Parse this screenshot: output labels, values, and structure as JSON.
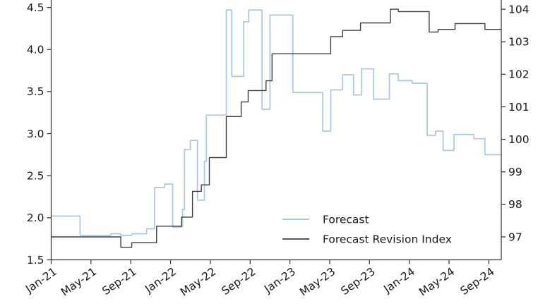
{
  "chart_data": {
    "type": "line",
    "style": "step-post",
    "title": "",
    "xlabel": "",
    "ylabel_left": "",
    "ylabel_right": "",
    "grid": false,
    "series": [
      {
        "name": "Forecast",
        "axis": "left",
        "color": "#a9c7e3",
        "line_width": 1.7,
        "step_points": [
          [
            0.0,
            2.02
          ],
          [
            2.9,
            1.79
          ],
          [
            6.0,
            1.81
          ],
          [
            7.0,
            1.79
          ],
          [
            8.1,
            1.81
          ],
          [
            9.6,
            1.87
          ],
          [
            10.4,
            2.36
          ],
          [
            11.4,
            2.4
          ],
          [
            12.2,
            1.89
          ],
          [
            13.2,
            2.1
          ],
          [
            13.4,
            2.81
          ],
          [
            14.0,
            2.92
          ],
          [
            14.7,
            2.21
          ],
          [
            15.4,
            2.67
          ],
          [
            15.6,
            3.22
          ],
          [
            17.6,
            4.47
          ],
          [
            18.15,
            3.68
          ],
          [
            19.35,
            4.33
          ],
          [
            19.85,
            4.47
          ],
          [
            21.2,
            3.29
          ],
          [
            22.0,
            4.41
          ],
          [
            24.3,
            3.49
          ],
          [
            27.3,
            3.03
          ],
          [
            28.1,
            3.52
          ],
          [
            29.3,
            3.7
          ],
          [
            30.4,
            3.46
          ],
          [
            31.2,
            3.77
          ],
          [
            32.4,
            3.41
          ],
          [
            34.0,
            3.71
          ],
          [
            34.9,
            3.63
          ],
          [
            36.3,
            3.6
          ],
          [
            37.8,
            2.98
          ],
          [
            38.65,
            3.03
          ],
          [
            39.4,
            2.8
          ],
          [
            40.5,
            2.99
          ],
          [
            42.5,
            2.94
          ],
          [
            43.6,
            2.75
          ]
        ]
      },
      {
        "name": "Forecast Revision Index",
        "axis": "right",
        "color": "#3d3d3d",
        "line_width": 1.4,
        "step_points": [
          [
            0.0,
            97.0
          ],
          [
            7.0,
            96.68
          ],
          [
            8.1,
            96.82
          ],
          [
            10.6,
            97.33
          ],
          [
            13.1,
            97.61
          ],
          [
            14.2,
            98.4
          ],
          [
            15.1,
            98.6
          ],
          [
            15.9,
            99.44
          ],
          [
            17.6,
            100.7
          ],
          [
            19.1,
            101.15
          ],
          [
            19.8,
            101.5
          ],
          [
            21.6,
            101.8
          ],
          [
            22.2,
            102.63
          ],
          [
            28.1,
            103.16
          ],
          [
            29.3,
            103.35
          ],
          [
            31.1,
            103.58
          ],
          [
            34.1,
            104.0
          ],
          [
            34.9,
            103.93
          ],
          [
            38.0,
            103.3
          ],
          [
            38.9,
            103.38
          ],
          [
            40.6,
            103.56
          ],
          [
            43.6,
            103.38
          ]
        ]
      }
    ],
    "x_axis": {
      "unit": "months-since-Jan-2021",
      "min": 0,
      "max": 45.25,
      "tick_values": [
        0,
        4,
        8,
        12,
        16,
        20,
        24,
        28,
        32,
        36,
        40,
        44
      ],
      "tick_labels": [
        "Jan-21",
        "May-21",
        "Sep-21",
        "Jan-22",
        "May-22",
        "Sep-22",
        "Jan-23",
        "May-23",
        "Sep-23",
        "Jan-24",
        "May-24",
        "Sep-24"
      ],
      "label_rotation_deg": -35
    },
    "left_axis": {
      "range": [
        1.5,
        4.589
      ],
      "tick_values": [
        1.5,
        2.0,
        2.5,
        3.0,
        3.5,
        4.0,
        4.5
      ],
      "tick_labels": [
        "1.5",
        "2.0",
        "2.5",
        "3.0",
        "3.5",
        "4.0",
        "4.5"
      ]
    },
    "right_axis": {
      "range": [
        96.295,
        104.285
      ],
      "tick_values": [
        97,
        98,
        99,
        100,
        101,
        102,
        103,
        104
      ],
      "tick_labels": [
        "97",
        "98",
        "99",
        "100",
        "101",
        "102",
        "103",
        "104"
      ]
    },
    "legend": {
      "entries": [
        "Forecast",
        "Forecast Revision Index"
      ],
      "frame": false,
      "position": "lower-right-of-center"
    }
  },
  "layout_colors": {
    "spine": "#3a3a3a",
    "tick": "#2b2b2b",
    "text": "#1a1a1a",
    "background": "#ffffff"
  }
}
